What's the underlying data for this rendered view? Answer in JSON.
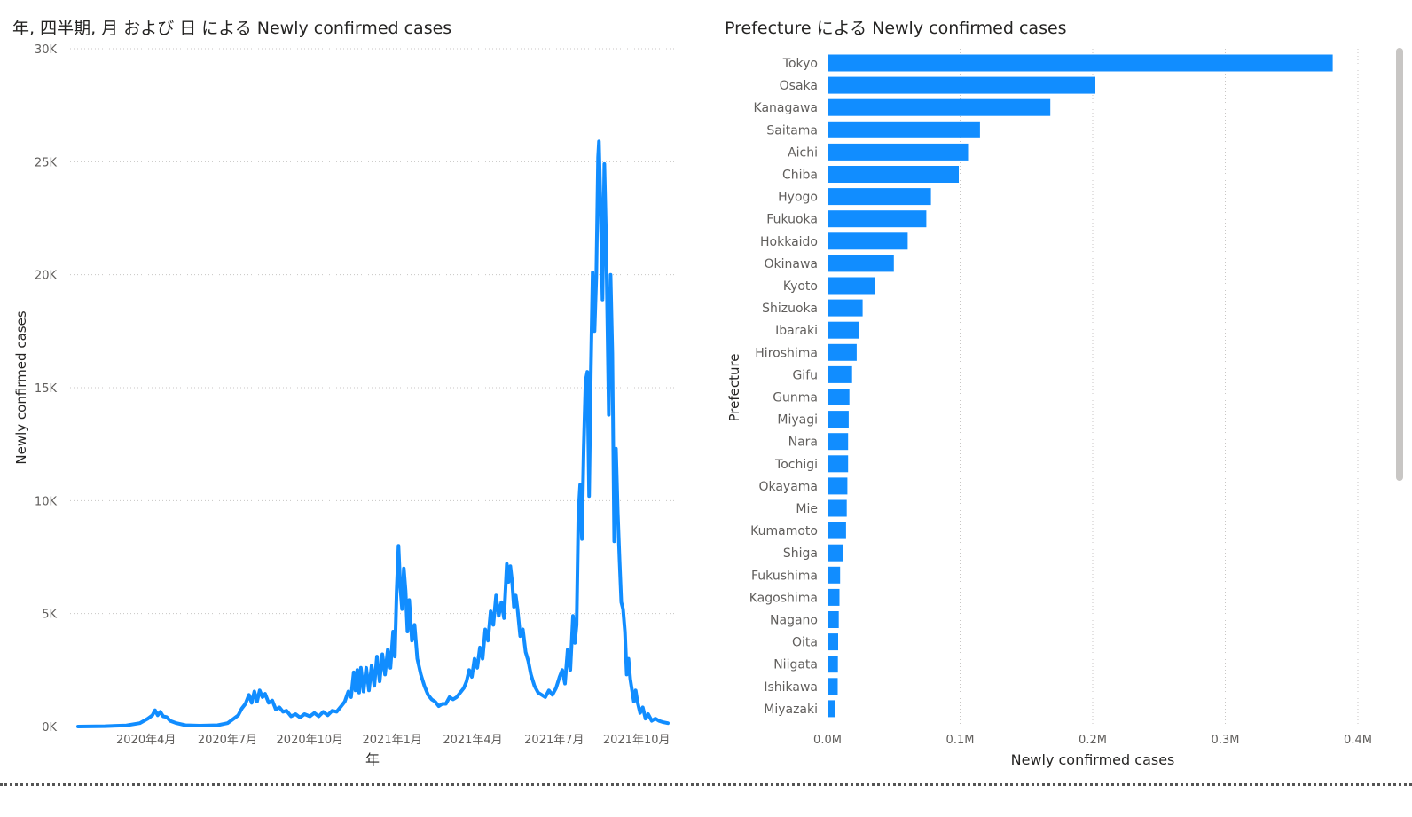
{
  "chart_data": [
    {
      "type": "line",
      "title": "年, 四半期, 月 および 日 による Newly confirmed cases",
      "xlabel": "年",
      "ylabel": "Newly confirmed cases",
      "ylim": [
        0,
        30000
      ],
      "y_ticks": [
        {
          "value": 0,
          "label": "0K"
        },
        {
          "value": 5000,
          "label": "5K"
        },
        {
          "value": 10000,
          "label": "10K"
        },
        {
          "value": 15000,
          "label": "15K"
        },
        {
          "value": 20000,
          "label": "20K"
        },
        {
          "value": 25000,
          "label": "25K"
        },
        {
          "value": 30000,
          "label": "30K"
        }
      ],
      "x_range": [
        "2020-01-16",
        "2021-11-05"
      ],
      "x_ticks": [
        {
          "date": "2020-04-01",
          "label": "2020年4月"
        },
        {
          "date": "2020-07-01",
          "label": "2020年7月"
        },
        {
          "date": "2020-10-01",
          "label": "2020年10月"
        },
        {
          "date": "2021-01-01",
          "label": "2021年1月"
        },
        {
          "date": "2021-04-01",
          "label": "2021年4月"
        },
        {
          "date": "2021-07-01",
          "label": "2021年7月"
        },
        {
          "date": "2021-10-01",
          "label": "2021年10月"
        }
      ],
      "grid": true,
      "color": "#118DFF",
      "series": [
        {
          "points": [
            [
              "2020-01-16",
              0
            ],
            [
              "2020-02-15",
              15
            ],
            [
              "2020-03-10",
              50
            ],
            [
              "2020-03-25",
              150
            ],
            [
              "2020-04-03",
              350
            ],
            [
              "2020-04-08",
              500
            ],
            [
              "2020-04-11",
              720
            ],
            [
              "2020-04-14",
              500
            ],
            [
              "2020-04-17",
              650
            ],
            [
              "2020-04-20",
              450
            ],
            [
              "2020-04-24",
              420
            ],
            [
              "2020-04-28",
              250
            ],
            [
              "2020-05-05",
              150
            ],
            [
              "2020-05-15",
              60
            ],
            [
              "2020-05-31",
              40
            ],
            [
              "2020-06-20",
              60
            ],
            [
              "2020-07-01",
              150
            ],
            [
              "2020-07-08",
              350
            ],
            [
              "2020-07-13",
              500
            ],
            [
              "2020-07-17",
              800
            ],
            [
              "2020-07-21",
              1000
            ],
            [
              "2020-07-25",
              1400
            ],
            [
              "2020-07-28",
              1050
            ],
            [
              "2020-07-31",
              1550
            ],
            [
              "2020-08-03",
              1100
            ],
            [
              "2020-08-06",
              1600
            ],
            [
              "2020-08-09",
              1300
            ],
            [
              "2020-08-12",
              1450
            ],
            [
              "2020-08-16",
              1050
            ],
            [
              "2020-08-20",
              1150
            ],
            [
              "2020-08-24",
              750
            ],
            [
              "2020-08-28",
              850
            ],
            [
              "2020-09-01",
              650
            ],
            [
              "2020-09-05",
              700
            ],
            [
              "2020-09-10",
              450
            ],
            [
              "2020-09-15",
              550
            ],
            [
              "2020-09-20",
              400
            ],
            [
              "2020-09-25",
              550
            ],
            [
              "2020-10-01",
              450
            ],
            [
              "2020-10-06",
              600
            ],
            [
              "2020-10-11",
              450
            ],
            [
              "2020-10-16",
              650
            ],
            [
              "2020-10-21",
              500
            ],
            [
              "2020-10-26",
              700
            ],
            [
              "2020-10-31",
              650
            ],
            [
              "2020-11-05",
              900
            ],
            [
              "2020-11-09",
              1100
            ],
            [
              "2020-11-13",
              1550
            ],
            [
              "2020-11-16",
              1300
            ],
            [
              "2020-11-19",
              2400
            ],
            [
              "2020-11-21",
              1600
            ],
            [
              "2020-11-23",
              2500
            ],
            [
              "2020-11-25",
              1500
            ],
            [
              "2020-11-27",
              2600
            ],
            [
              "2020-11-30",
              1550
            ],
            [
              "2020-12-03",
              2600
            ],
            [
              "2020-12-06",
              1600
            ],
            [
              "2020-12-09",
              2700
            ],
            [
              "2020-12-12",
              1800
            ],
            [
              "2020-12-15",
              3100
            ],
            [
              "2020-12-18",
              2000
            ],
            [
              "2020-12-21",
              3200
            ],
            [
              "2020-12-24",
              2300
            ],
            [
              "2020-12-27",
              3400
            ],
            [
              "2020-12-30",
              2600
            ],
            [
              "2021-01-02",
              4200
            ],
            [
              "2021-01-04",
              3100
            ],
            [
              "2021-01-06",
              6000
            ],
            [
              "2021-01-08",
              8000
            ],
            [
              "2021-01-10",
              6200
            ],
            [
              "2021-01-12",
              5200
            ],
            [
              "2021-01-14",
              7000
            ],
            [
              "2021-01-16",
              6000
            ],
            [
              "2021-01-18",
              4200
            ],
            [
              "2021-01-20",
              5600
            ],
            [
              "2021-01-23",
              3800
            ],
            [
              "2021-01-26",
              4500
            ],
            [
              "2021-01-29",
              3000
            ],
            [
              "2021-02-02",
              2300
            ],
            [
              "2021-02-06",
              1800
            ],
            [
              "2021-02-10",
              1400
            ],
            [
              "2021-02-14",
              1200
            ],
            [
              "2021-02-18",
              1100
            ],
            [
              "2021-02-22",
              900
            ],
            [
              "2021-02-26",
              1000
            ],
            [
              "2021-03-02",
              1000
            ],
            [
              "2021-03-06",
              1300
            ],
            [
              "2021-03-10",
              1200
            ],
            [
              "2021-03-14",
              1300
            ],
            [
              "2021-03-18",
              1500
            ],
            [
              "2021-03-22",
              1700
            ],
            [
              "2021-03-25",
              2000
            ],
            [
              "2021-03-28",
              2500
            ],
            [
              "2021-03-31",
              2200
            ],
            [
              "2021-04-03",
              3000
            ],
            [
              "2021-04-06",
              2600
            ],
            [
              "2021-04-09",
              3500
            ],
            [
              "2021-04-12",
              3000
            ],
            [
              "2021-04-15",
              4300
            ],
            [
              "2021-04-18",
              3800
            ],
            [
              "2021-04-21",
              5100
            ],
            [
              "2021-04-24",
              4500
            ],
            [
              "2021-04-27",
              5800
            ],
            [
              "2021-04-30",
              4900
            ],
            [
              "2021-05-03",
              5500
            ],
            [
              "2021-05-06",
              4800
            ],
            [
              "2021-05-09",
              7200
            ],
            [
              "2021-05-11",
              6400
            ],
            [
              "2021-05-13",
              7100
            ],
            [
              "2021-05-15",
              6400
            ],
            [
              "2021-05-17",
              5300
            ],
            [
              "2021-05-19",
              5800
            ],
            [
              "2021-05-21",
              5200
            ],
            [
              "2021-05-24",
              4000
            ],
            [
              "2021-05-27",
              4300
            ],
            [
              "2021-05-30",
              3300
            ],
            [
              "2021-06-02",
              2900
            ],
            [
              "2021-06-05",
              2300
            ],
            [
              "2021-06-09",
              1800
            ],
            [
              "2021-06-13",
              1500
            ],
            [
              "2021-06-17",
              1400
            ],
            [
              "2021-06-21",
              1300
            ],
            [
              "2021-06-25",
              1600
            ],
            [
              "2021-06-29",
              1400
            ],
            [
              "2021-07-03",
              1700
            ],
            [
              "2021-07-07",
              2200
            ],
            [
              "2021-07-10",
              2500
            ],
            [
              "2021-07-13",
              1900
            ],
            [
              "2021-07-16",
              3400
            ],
            [
              "2021-07-19",
              2500
            ],
            [
              "2021-07-22",
              4900
            ],
            [
              "2021-07-24",
              3700
            ],
            [
              "2021-07-26",
              4500
            ],
            [
              "2021-07-28",
              9400
            ],
            [
              "2021-07-30",
              10700
            ],
            [
              "2021-08-01",
              8300
            ],
            [
              "2021-08-03",
              12300
            ],
            [
              "2021-08-05",
              15300
            ],
            [
              "2021-08-07",
              15700
            ],
            [
              "2021-08-09",
              10200
            ],
            [
              "2021-08-11",
              15800
            ],
            [
              "2021-08-13",
              20100
            ],
            [
              "2021-08-15",
              17500
            ],
            [
              "2021-08-17",
              19900
            ],
            [
              "2021-08-19",
              25200
            ],
            [
              "2021-08-20",
              25900
            ],
            [
              "2021-08-22",
              22700
            ],
            [
              "2021-08-24",
              18900
            ],
            [
              "2021-08-26",
              24900
            ],
            [
              "2021-08-28",
              21500
            ],
            [
              "2021-08-31",
              13800
            ],
            [
              "2021-09-02",
              20000
            ],
            [
              "2021-09-04",
              16500
            ],
            [
              "2021-09-06",
              8200
            ],
            [
              "2021-09-08",
              12300
            ],
            [
              "2021-09-10",
              9500
            ],
            [
              "2021-09-12",
              7400
            ],
            [
              "2021-09-14",
              5500
            ],
            [
              "2021-09-16",
              5200
            ],
            [
              "2021-09-18",
              4200
            ],
            [
              "2021-09-20",
              2300
            ],
            [
              "2021-09-22",
              3000
            ],
            [
              "2021-09-24",
              2100
            ],
            [
              "2021-09-26",
              1600
            ],
            [
              "2021-09-28",
              1100
            ],
            [
              "2021-09-30",
              1600
            ],
            [
              "2021-10-02",
              1100
            ],
            [
              "2021-10-05",
              600
            ],
            [
              "2021-10-08",
              850
            ],
            [
              "2021-10-11",
              350
            ],
            [
              "2021-10-14",
              550
            ],
            [
              "2021-10-18",
              250
            ],
            [
              "2021-10-22",
              350
            ],
            [
              "2021-10-26",
              250
            ],
            [
              "2021-10-30",
              200
            ],
            [
              "2021-11-05",
              150
            ]
          ]
        }
      ]
    },
    {
      "type": "bar",
      "orientation": "horizontal",
      "title": "Prefecture による Newly confirmed cases",
      "xlabel": "Newly confirmed cases",
      "ylabel": "Prefecture",
      "xlim": [
        0,
        400000
      ],
      "x_ticks": [
        {
          "value": 0,
          "label": "0.0M"
        },
        {
          "value": 100000,
          "label": "0.1M"
        },
        {
          "value": 200000,
          "label": "0.2M"
        },
        {
          "value": 300000,
          "label": "0.3M"
        },
        {
          "value": 400000,
          "label": "0.4M"
        }
      ],
      "grid": true,
      "color": "#118DFF",
      "categories": [
        "Tokyo",
        "Osaka",
        "Kanagawa",
        "Saitama",
        "Aichi",
        "Chiba",
        "Hyogo",
        "Fukuoka",
        "Hokkaido",
        "Okinawa",
        "Kyoto",
        "Shizuoka",
        "Ibaraki",
        "Hiroshima",
        "Gifu",
        "Gunma",
        "Miyagi",
        "Nara",
        "Tochigi",
        "Okayama",
        "Mie",
        "Kumamoto",
        "Shiga",
        "Fukushima",
        "Kagoshima",
        "Nagano",
        "Oita",
        "Niigata",
        "Ishikawa",
        "Miyazaki"
      ],
      "values": [
        381000,
        202000,
        168000,
        115000,
        106000,
        99000,
        78000,
        74500,
        60500,
        50000,
        35500,
        26500,
        24000,
        22000,
        18500,
        16500,
        16000,
        15500,
        15500,
        15000,
        14500,
        14000,
        12000,
        9500,
        9000,
        8500,
        8000,
        7800,
        7700,
        6000
      ]
    }
  ]
}
